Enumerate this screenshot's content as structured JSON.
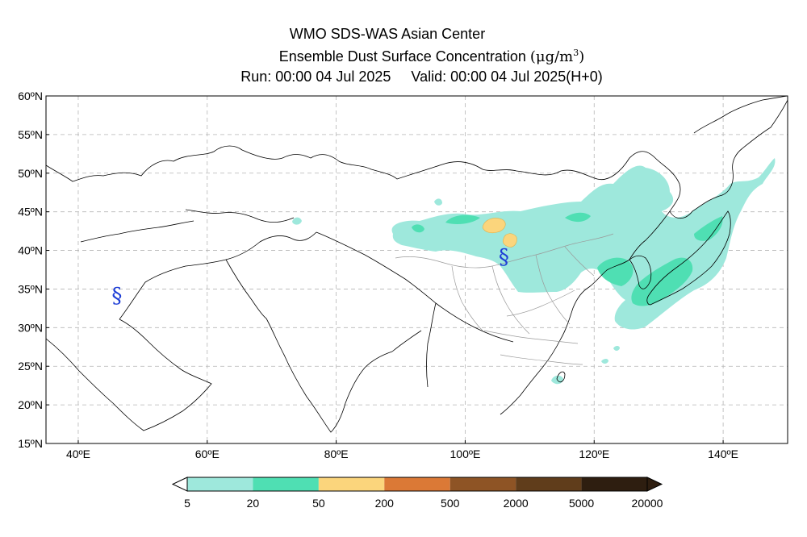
{
  "header": {
    "title": "WMO SDS-WAS Asian Center",
    "subtitle": "Ensemble Dust Surface Concentration",
    "unit_prefix": "(μg/m",
    "unit_power": "3",
    "unit_suffix": ")",
    "run": "Run: 00:00 04 Jul 2025",
    "valid": "Valid: 00:00 04 Jul 2025(H+0)"
  },
  "map": {
    "lon_range": [
      35,
      150
    ],
    "lat_range": [
      15,
      60
    ],
    "lon_ticks": [
      {
        "value": 40,
        "label": "40ºE"
      },
      {
        "value": 60,
        "label": "60ºE"
      },
      {
        "value": 80,
        "label": "80ºE"
      },
      {
        "value": 100,
        "label": "100ºE"
      },
      {
        "value": 120,
        "label": "120ºE"
      },
      {
        "value": 140,
        "label": "140ºE"
      }
    ],
    "lat_ticks": [
      {
        "value": 15,
        "label": "15ºN"
      },
      {
        "value": 20,
        "label": "20ºN"
      },
      {
        "value": 25,
        "label": "25ºN"
      },
      {
        "value": 30,
        "label": "30ºN"
      },
      {
        "value": 35,
        "label": "35ºN"
      },
      {
        "value": 40,
        "label": "40ºN"
      },
      {
        "value": 45,
        "label": "45ºN"
      },
      {
        "value": 50,
        "label": "50ºN"
      },
      {
        "value": 55,
        "label": "55ºN"
      },
      {
        "value": 60,
        "label": "60ºN"
      }
    ],
    "grid": true,
    "station_markers": [
      {
        "name": "station-marker-west",
        "lon": 46,
        "lat": 34.2
      },
      {
        "name": "station-marker-east",
        "lon": 106,
        "lat": 39.2
      }
    ]
  },
  "colorbar": {
    "levels": [
      "5",
      "20",
      "50",
      "200",
      "500",
      "2000",
      "5000",
      "20000"
    ],
    "colors": [
      "#9ee8dc",
      "#4fdfb3",
      "#fbd57c",
      "#db7936",
      "#8e5425",
      "#603d1b",
      "#2e1e10"
    ]
  }
}
